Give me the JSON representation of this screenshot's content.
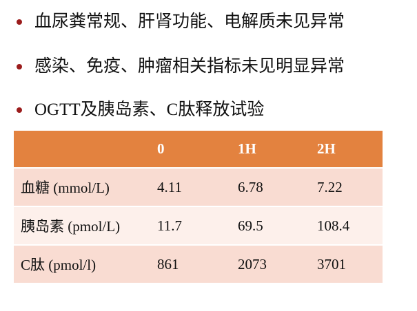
{
  "bullets": [
    "血尿粪常规、肝肾功能、电解质未见异常",
    "感染、免疫、肿瘤相关指标未见明显异常",
    "OGTT及胰岛素、C肽释放试验"
  ],
  "table": {
    "header": [
      "0",
      "1H",
      "2H"
    ],
    "rows": [
      [
        "血糖 (mmol/L)",
        "4.11",
        "6.78",
        "7.22"
      ],
      [
        "胰岛素 (pmol/L)",
        "11.7",
        "69.5",
        "108.4"
      ],
      [
        "C肽 (pmol/l)",
        "861",
        "2073",
        "3701"
      ]
    ]
  }
}
